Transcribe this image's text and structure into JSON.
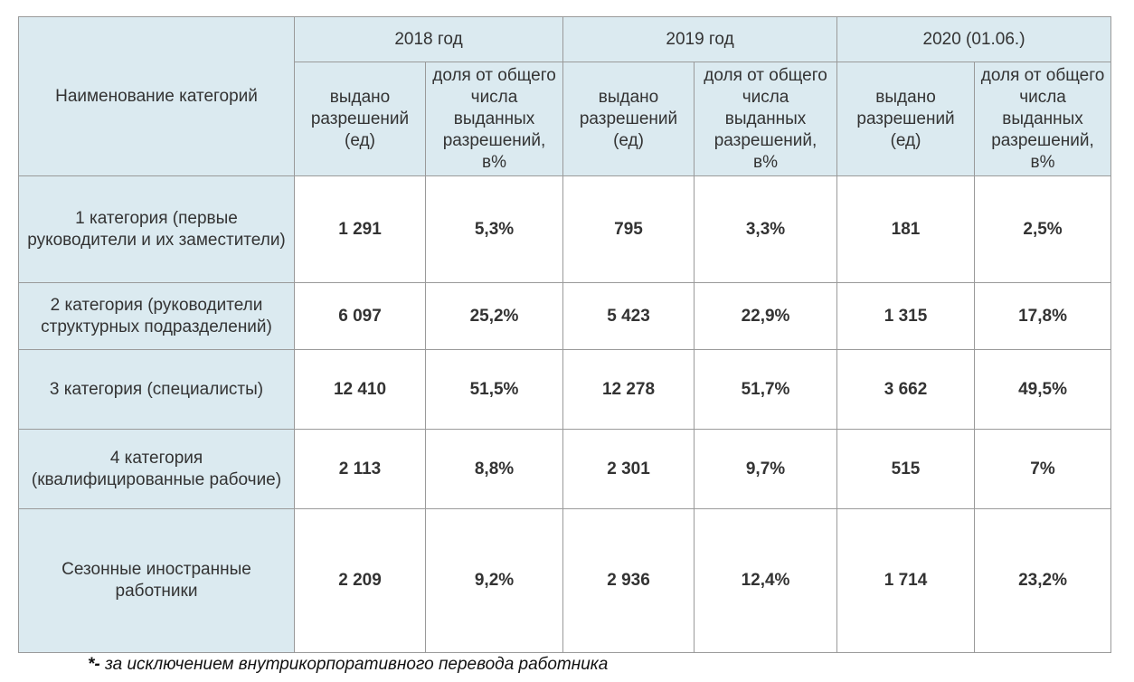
{
  "table": {
    "category_header": "Наименование категорий",
    "years": [
      "2018 год",
      "2019 год",
      "2020 (01.06.)"
    ],
    "sub_headers": {
      "issued": "выдано разрешений (ед)",
      "share": "доля от общего числа выданных разрешений, в%"
    },
    "rows": [
      {
        "category": "1 категория (первые руководители и их заместители)",
        "cells": [
          "1 291",
          "5,3%",
          "795",
          "3,3%",
          "181",
          "2,5%"
        ]
      },
      {
        "category": "2 категория (руководители структурных подразделений)",
        "cells": [
          "6 097",
          "25,2%",
          "5 423",
          "22,9%",
          "1 315",
          "17,8%"
        ]
      },
      {
        "category": "3 категория (специалисты)",
        "cells": [
          "12 410",
          "51,5%",
          "12 278",
          "51,7%",
          "3 662",
          "49,5%"
        ]
      },
      {
        "category": "4 категория (квалифицированные рабочие)",
        "cells": [
          "2 113",
          "8,8%",
          "2 301",
          "9,7%",
          "515",
          "7%"
        ]
      },
      {
        "category": "Сезонные иностранные работники",
        "cells": [
          "2 209",
          "9,2%",
          "2 936",
          "12,4%",
          "1 714",
          "23,2%"
        ]
      }
    ]
  },
  "footnote": {
    "marker": "*-",
    "text": " за исключением внутрикорпоративного перевода работника"
  },
  "colors": {
    "header_bg": "#dbeaf0",
    "border": "#9a9a9a",
    "text": "#333333"
  }
}
